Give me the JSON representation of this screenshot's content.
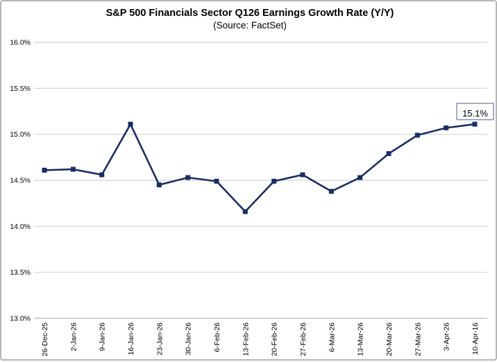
{
  "chart_data": {
    "type": "line",
    "title": "S&P 500 Financials Sector Q126 Earnings Growth Rate (Y/Y)",
    "subtitle": "(Source: FactSet)",
    "categories": [
      "26-Dec-25",
      "2-Jan-26",
      "9-Jan-26",
      "16-Jan-26",
      "23-Jan-26",
      "30-Jan-26",
      "6-Feb-26",
      "13-Feb-26",
      "20-Feb-26",
      "27-Feb-26",
      "6-Mar-26",
      "13-Mar-26",
      "20-Mar-26",
      "27-Mar-26",
      "3-Apr-26",
      "10-Apr-16"
    ],
    "values": [
      14.61,
      14.62,
      14.56,
      15.11,
      14.45,
      14.53,
      14.49,
      14.16,
      14.49,
      14.56,
      14.38,
      14.53,
      14.79,
      14.99,
      15.07,
      15.11
    ],
    "last_point_label": "15.1%",
    "yticks": [
      "16.0%",
      "15.5%",
      "15.0%",
      "14.5%",
      "14.0%",
      "13.5%",
      "13.0%"
    ],
    "ylim": [
      13.0,
      16.0
    ],
    "ytick_step": 0.5,
    "xlabel": "",
    "ylabel": "",
    "grid": true,
    "legend": "none",
    "colors": {
      "line": "#182e63",
      "marker": "#182e63",
      "gridline": "#d2d2d2",
      "axis": "#b3b3b3",
      "text": "#000000",
      "callout_border": "#7b8db0",
      "callout_fill": "#ffffff",
      "frame_border": "#b5b5b5"
    }
  }
}
